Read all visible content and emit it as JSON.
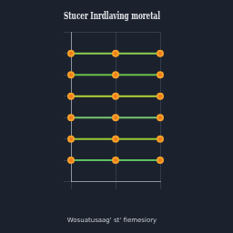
{
  "chart_data": {
    "type": "line",
    "title": "Stucer Inrdlaving moretal",
    "subtitle": "Wosuatusaag' st' fiemesiory",
    "x": [
      0,
      50,
      100
    ],
    "series": [
      {
        "color": "#8fd14f",
        "values": [
          7,
          7,
          7
        ],
        "marker": "circle",
        "line_style": "solid"
      },
      {
        "color": "#6cc04a",
        "values": [
          6,
          6,
          6
        ],
        "marker": "circle",
        "line_style": "solid"
      },
      {
        "color": "#b5d334",
        "values": [
          5,
          5,
          5
        ],
        "marker": "circle",
        "line_style": "solid"
      },
      {
        "color": "#7bc96f",
        "values": [
          4,
          4,
          4
        ],
        "marker": "circle",
        "line_style": "solid"
      },
      {
        "color": "#9acd32",
        "values": [
          3,
          3,
          3
        ],
        "marker": "circle",
        "line_style": "solid"
      },
      {
        "color": "#5fbf5f",
        "values": [
          2,
          2,
          2
        ],
        "marker": "circle",
        "line_style": "solid"
      }
    ],
    "xlim": [
      0,
      100
    ],
    "xticks": [
      0,
      50,
      100
    ],
    "ylim": [
      1,
      8
    ],
    "yticks": [
      1,
      2,
      3,
      4,
      5,
      6,
      7,
      8
    ],
    "grid": true,
    "tick_labels": false
  }
}
